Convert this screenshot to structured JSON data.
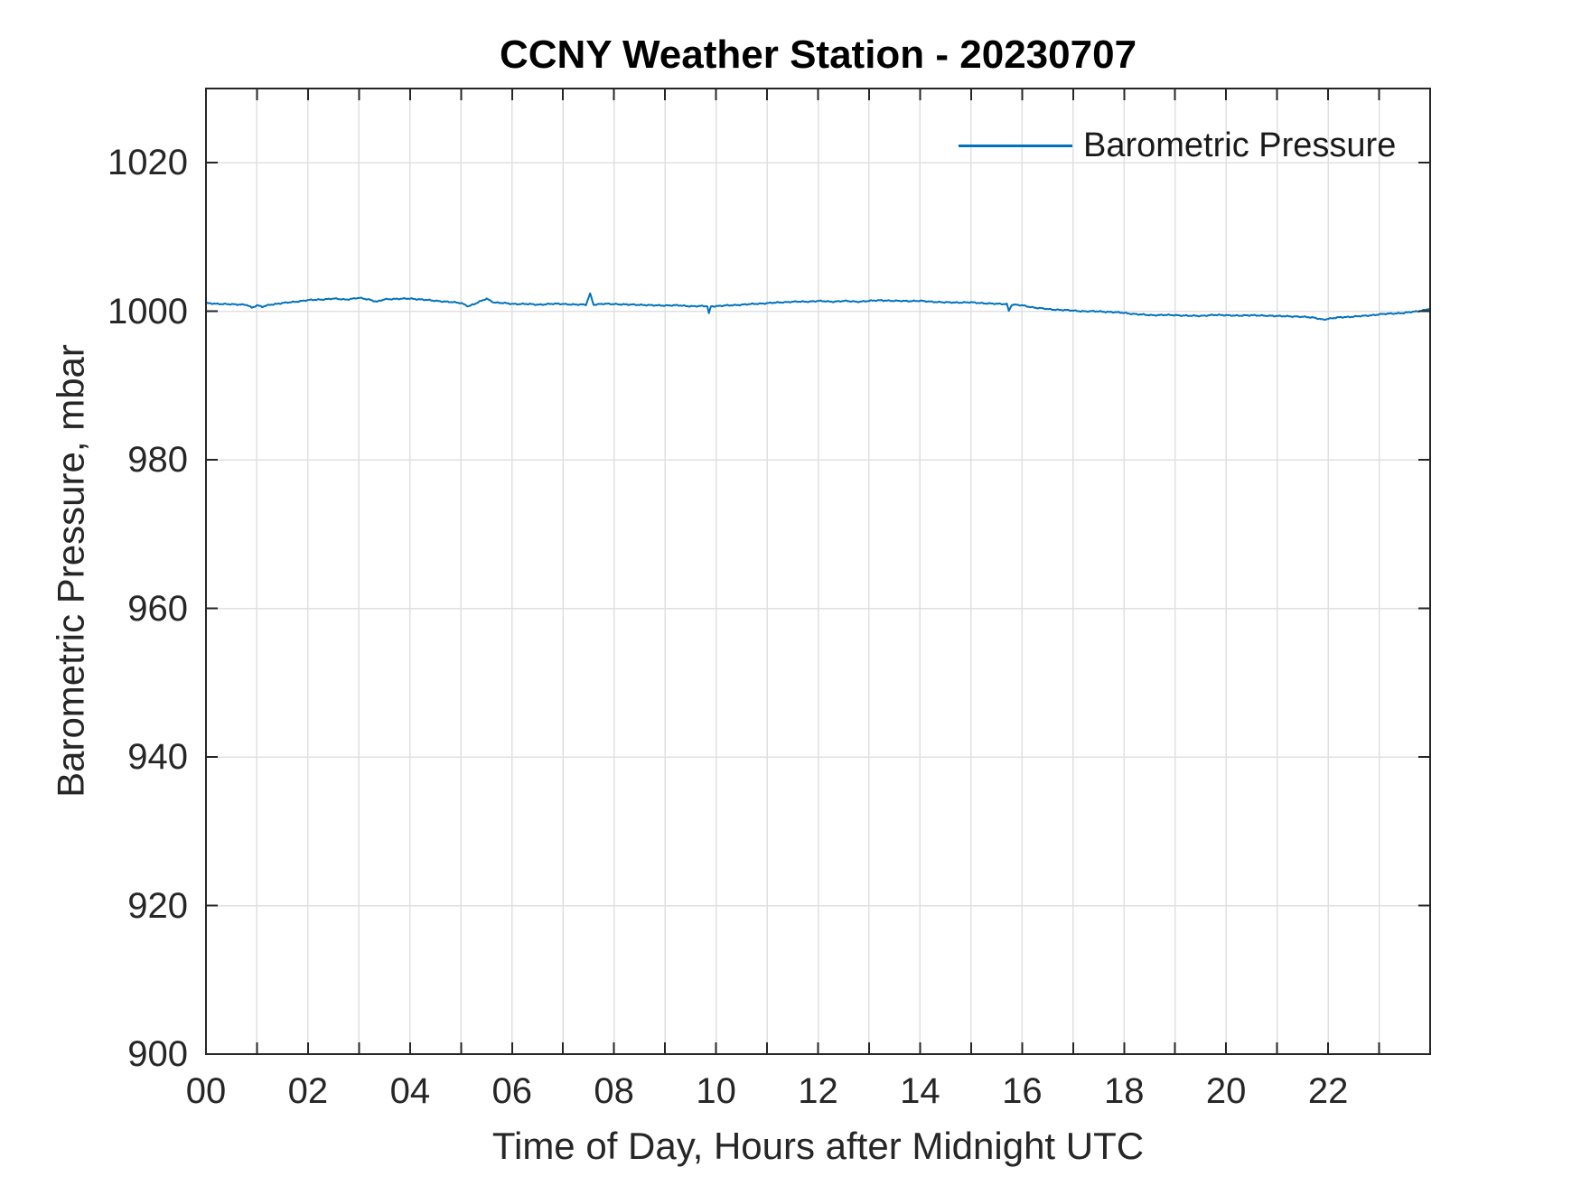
{
  "figure": {
    "title": "CCNY Weather Station - 20230707"
  },
  "legend": {
    "label": "Barometric Pressure"
  },
  "style": {
    "line_color": "#0072BD",
    "grid_color": "#e0e0e0",
    "axis_color": "#262626",
    "text_color": "#262626",
    "background": "#ffffff"
  },
  "chart_data": {
    "type": "line",
    "title": "CCNY Weather Station - 20230707",
    "xlabel": "Time of Day, Hours after Midnight UTC",
    "ylabel": "Barometric Pressure, mbar",
    "xlim": [
      0,
      24
    ],
    "ylim": [
      900,
      1030
    ],
    "grid": true,
    "x_minor_tick_step_hours": 1,
    "xticks": [
      {
        "value": 0,
        "label": "00"
      },
      {
        "value": 2,
        "label": "02"
      },
      {
        "value": 4,
        "label": "04"
      },
      {
        "value": 6,
        "label": "06"
      },
      {
        "value": 8,
        "label": "08"
      },
      {
        "value": 10,
        "label": "10"
      },
      {
        "value": 12,
        "label": "12"
      },
      {
        "value": 14,
        "label": "14"
      },
      {
        "value": 16,
        "label": "16"
      },
      {
        "value": 18,
        "label": "18"
      },
      {
        "value": 20,
        "label": "20"
      },
      {
        "value": 22,
        "label": "22"
      }
    ],
    "yticks": [
      900,
      920,
      940,
      960,
      980,
      1000,
      1020
    ],
    "legend_position": "top-right-inside-no-box",
    "series": [
      {
        "name": "Barometric Pressure",
        "color": "#0072BD",
        "units": "mbar",
        "x_units": "hours after midnight UTC",
        "points": [
          [
            0.0,
            1001.1
          ],
          [
            0.2,
            1001.0
          ],
          [
            0.4,
            1001.0
          ],
          [
            0.6,
            1000.9
          ],
          [
            0.8,
            1000.9
          ],
          [
            0.9,
            1000.5
          ],
          [
            1.0,
            1000.8
          ],
          [
            1.1,
            1000.6
          ],
          [
            1.25,
            1000.9
          ],
          [
            1.5,
            1001.1
          ],
          [
            1.75,
            1001.3
          ],
          [
            2.0,
            1001.5
          ],
          [
            2.25,
            1001.6
          ],
          [
            2.5,
            1001.7
          ],
          [
            2.75,
            1001.6
          ],
          [
            3.0,
            1001.8
          ],
          [
            3.2,
            1001.6
          ],
          [
            3.35,
            1001.3
          ],
          [
            3.5,
            1001.6
          ],
          [
            3.75,
            1001.7
          ],
          [
            4.0,
            1001.7
          ],
          [
            4.25,
            1001.6
          ],
          [
            4.5,
            1001.4
          ],
          [
            4.75,
            1001.3
          ],
          [
            5.0,
            1001.1
          ],
          [
            5.15,
            1000.7
          ],
          [
            5.3,
            1001.1
          ],
          [
            5.5,
            1001.7
          ],
          [
            5.65,
            1001.2
          ],
          [
            5.85,
            1001.1
          ],
          [
            6.0,
            1001.0
          ],
          [
            6.25,
            1001.0
          ],
          [
            6.5,
            1000.9
          ],
          [
            6.75,
            1001.0
          ],
          [
            7.0,
            1001.0
          ],
          [
            7.25,
            1000.9
          ],
          [
            7.45,
            1000.9
          ],
          [
            7.53,
            1002.4
          ],
          [
            7.6,
            1000.9
          ],
          [
            7.8,
            1001.0
          ],
          [
            8.0,
            1001.0
          ],
          [
            8.25,
            1000.9
          ],
          [
            8.5,
            1000.9
          ],
          [
            8.75,
            1000.8
          ],
          [
            9.0,
            1000.8
          ],
          [
            9.25,
            1000.8
          ],
          [
            9.5,
            1000.7
          ],
          [
            9.75,
            1000.7
          ],
          [
            9.83,
            1000.7
          ],
          [
            9.86,
            999.7
          ],
          [
            9.9,
            1000.7
          ],
          [
            10.0,
            1000.7
          ],
          [
            10.25,
            1000.8
          ],
          [
            10.5,
            1000.9
          ],
          [
            10.75,
            1001.0
          ],
          [
            11.0,
            1001.1
          ],
          [
            11.25,
            1001.2
          ],
          [
            11.5,
            1001.3
          ],
          [
            11.75,
            1001.3
          ],
          [
            12.0,
            1001.4
          ],
          [
            12.25,
            1001.3
          ],
          [
            12.5,
            1001.4
          ],
          [
            12.75,
            1001.3
          ],
          [
            13.0,
            1001.4
          ],
          [
            13.25,
            1001.5
          ],
          [
            13.5,
            1001.4
          ],
          [
            13.75,
            1001.4
          ],
          [
            14.0,
            1001.4
          ],
          [
            14.25,
            1001.3
          ],
          [
            14.5,
            1001.2
          ],
          [
            14.75,
            1001.2
          ],
          [
            15.0,
            1001.2
          ],
          [
            15.25,
            1001.1
          ],
          [
            15.5,
            1001.0
          ],
          [
            15.7,
            1001.0
          ],
          [
            15.74,
            1000.1
          ],
          [
            15.8,
            1000.9
          ],
          [
            16.0,
            1000.8
          ],
          [
            16.25,
            1000.5
          ],
          [
            16.5,
            1000.3
          ],
          [
            16.75,
            1000.2
          ],
          [
            17.0,
            1000.1
          ],
          [
            17.25,
            1000.0
          ],
          [
            17.5,
            1000.0
          ],
          [
            17.75,
            999.9
          ],
          [
            18.0,
            999.8
          ],
          [
            18.25,
            999.6
          ],
          [
            18.5,
            999.5
          ],
          [
            18.75,
            999.5
          ],
          [
            19.0,
            999.5
          ],
          [
            19.25,
            999.4
          ],
          [
            19.5,
            999.4
          ],
          [
            19.75,
            999.5
          ],
          [
            20.0,
            999.5
          ],
          [
            20.25,
            999.4
          ],
          [
            20.5,
            999.5
          ],
          [
            20.75,
            999.4
          ],
          [
            21.0,
            999.4
          ],
          [
            21.25,
            999.3
          ],
          [
            21.5,
            999.3
          ],
          [
            21.75,
            999.1
          ],
          [
            21.9,
            998.9
          ],
          [
            22.0,
            999.0
          ],
          [
            22.25,
            999.2
          ],
          [
            22.5,
            999.3
          ],
          [
            22.75,
            999.4
          ],
          [
            23.0,
            999.6
          ],
          [
            23.25,
            999.7
          ],
          [
            23.5,
            999.8
          ],
          [
            23.75,
            1000.0
          ],
          [
            23.9,
            1000.2
          ],
          [
            24.0,
            1000.4
          ]
        ]
      }
    ]
  }
}
